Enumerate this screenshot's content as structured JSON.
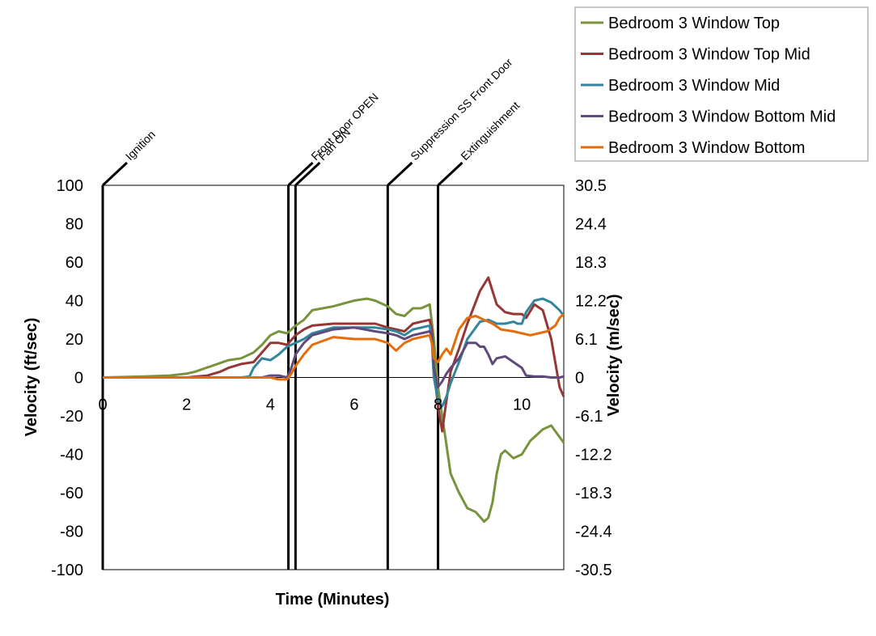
{
  "chart_data": {
    "type": "line",
    "xlabel": "Time (Minutes)",
    "ylabel": "Velocity (ft/sec)",
    "ylabel_right": "Velocity (m/sec)",
    "xlim": [
      0,
      11
    ],
    "ylim": [
      -100,
      100
    ],
    "x_ticks": [
      "0",
      "2",
      "4",
      "6",
      "8",
      "10"
    ],
    "y_ticks": [
      "100",
      "80",
      "60",
      "40",
      "20",
      "0",
      "-20",
      "-40",
      "-60",
      "-80",
      "-100"
    ],
    "y2_ticks": [
      "30.5",
      "24.4",
      "18.3",
      "12.2",
      "6.1",
      "0",
      "-6.1",
      "-12.2",
      "-18.3",
      "-24.4",
      "-30.5"
    ],
    "grid": false,
    "legend_position": "top-right",
    "events": [
      {
        "label": "Ignition",
        "x": 0
      },
      {
        "label": "Front Door OPEN",
        "x": 4.43
      },
      {
        "label": "Fan ON",
        "x": 4.6
      },
      {
        "label": "Suppression SS Front Door",
        "x": 6.8
      },
      {
        "label": "Extinguishment",
        "x": 8.0
      }
    ],
    "series": [
      {
        "name": "Bedroom 3 Window Top",
        "color": "#77933C",
        "x": [
          0,
          1.0,
          1.6,
          2.0,
          2.2,
          2.6,
          3.0,
          3.3,
          3.6,
          3.8,
          4.0,
          4.2,
          4.4,
          4.6,
          4.8,
          5.0,
          5.5,
          6.0,
          6.3,
          6.5,
          6.8,
          7.0,
          7.2,
          7.4,
          7.6,
          7.7,
          7.8,
          7.9,
          8.0,
          8.1,
          8.2,
          8.3,
          8.5,
          8.7,
          8.9,
          9.1,
          9.2,
          9.3,
          9.4,
          9.5,
          9.6,
          9.8,
          10.0,
          10.2,
          10.5,
          10.7,
          10.8,
          11.0
        ],
        "y": [
          0,
          0.5,
          1,
          2,
          3,
          6,
          9,
          10,
          13,
          17,
          22,
          24,
          23,
          27,
          30,
          35,
          37,
          40,
          41,
          40,
          37,
          33,
          32,
          36,
          36,
          37,
          38,
          20,
          -5,
          -20,
          -35,
          -50,
          -60,
          -68,
          -70,
          -75,
          -73,
          -65,
          -50,
          -40,
          -38,
          -42,
          -40,
          -33,
          -27,
          -25,
          -28,
          -34
        ]
      },
      {
        "name": "Bedroom 3 Window Top Mid",
        "color": "#953735",
        "x": [
          0,
          2.0,
          2.5,
          2.8,
          3.0,
          3.3,
          3.6,
          3.8,
          4.0,
          4.2,
          4.4,
          4.6,
          4.8,
          5.0,
          5.5,
          6.0,
          6.5,
          6.8,
          7.0,
          7.2,
          7.4,
          7.6,
          7.8,
          7.85,
          7.9,
          8.0,
          8.1,
          8.2,
          8.3,
          8.5,
          8.7,
          9.0,
          9.2,
          9.4,
          9.6,
          9.8,
          10.0,
          10.1,
          10.3,
          10.5,
          10.7,
          10.9,
          11.0
        ],
        "y": [
          0,
          0,
          1,
          3,
          5,
          7,
          8,
          13,
          18,
          18,
          17,
          22,
          25,
          27,
          28,
          28,
          28,
          26,
          25,
          24,
          28,
          29,
          30,
          25,
          5,
          -15,
          -28,
          -12,
          3,
          15,
          28,
          45,
          52,
          38,
          34,
          33,
          33,
          31,
          38,
          35,
          20,
          -5,
          -10
        ]
      },
      {
        "name": "Bedroom 3 Window Mid",
        "color": "#31859C",
        "x": [
          0,
          3.3,
          3.5,
          3.6,
          3.8,
          4.0,
          4.2,
          4.4,
          4.6,
          4.8,
          5.0,
          5.5,
          6.0,
          6.5,
          6.8,
          7.0,
          7.2,
          7.4,
          7.6,
          7.8,
          7.85,
          7.9,
          8.0,
          8.1,
          8.2,
          8.3,
          8.5,
          8.7,
          9.0,
          9.2,
          9.4,
          9.6,
          9.8,
          9.9,
          10.0,
          10.1,
          10.3,
          10.5,
          10.7,
          10.9,
          11.0
        ],
        "y": [
          0,
          0,
          0.5,
          5,
          10,
          9,
          12,
          16,
          18,
          20,
          23,
          26,
          26,
          26,
          25,
          24,
          22,
          25,
          26,
          27,
          20,
          0,
          -12,
          -15,
          -10,
          -3,
          8,
          20,
          29,
          30,
          28,
          28,
          29,
          28,
          28,
          34,
          40,
          41,
          39,
          35,
          32
        ]
      },
      {
        "name": "Bedroom 3 Window Bottom Mid",
        "color": "#604A7B",
        "x": [
          0,
          3.8,
          4.0,
          4.2,
          4.4,
          4.5,
          4.6,
          4.8,
          5.0,
          5.5,
          6.0,
          6.5,
          6.8,
          7.0,
          7.2,
          7.4,
          7.6,
          7.8,
          7.85,
          7.9,
          8.0,
          8.1,
          8.2,
          8.3,
          8.5,
          8.7,
          8.9,
          9.0,
          9.1,
          9.2,
          9.3,
          9.4,
          9.6,
          9.8,
          10.0,
          10.1,
          10.3,
          10.5,
          10.7,
          10.9,
          11.0
        ],
        "y": [
          0,
          0,
          1,
          1,
          0,
          5,
          12,
          18,
          22,
          25,
          26,
          24,
          23,
          22,
          20,
          22,
          23,
          24,
          22,
          5,
          -5,
          -2,
          2,
          5,
          10,
          18,
          18,
          16,
          16,
          12,
          7,
          10,
          11,
          8,
          5,
          1,
          0.5,
          0.5,
          0,
          0,
          0.5
        ]
      },
      {
        "name": "Bedroom 3 Window Bottom",
        "color": "#E46C0A",
        "x": [
          0,
          4.0,
          4.2,
          4.4,
          4.5,
          4.6,
          4.8,
          5.0,
          5.5,
          6.0,
          6.5,
          6.8,
          7.0,
          7.2,
          7.4,
          7.6,
          7.8,
          7.85,
          7.9,
          8.0,
          8.1,
          8.2,
          8.3,
          8.5,
          8.7,
          8.9,
          9.1,
          9.3,
          9.5,
          9.8,
          10.0,
          10.2,
          10.4,
          10.6,
          10.8,
          10.9,
          11.0
        ],
        "y": [
          0,
          0,
          -1,
          -1,
          2,
          6,
          12,
          17,
          21,
          20,
          20,
          18,
          14,
          18,
          20,
          21,
          22,
          18,
          10,
          8,
          12,
          15,
          12,
          25,
          31,
          32,
          30,
          28,
          25,
          24,
          23,
          22,
          23,
          24,
          27,
          31,
          33
        ]
      }
    ]
  }
}
